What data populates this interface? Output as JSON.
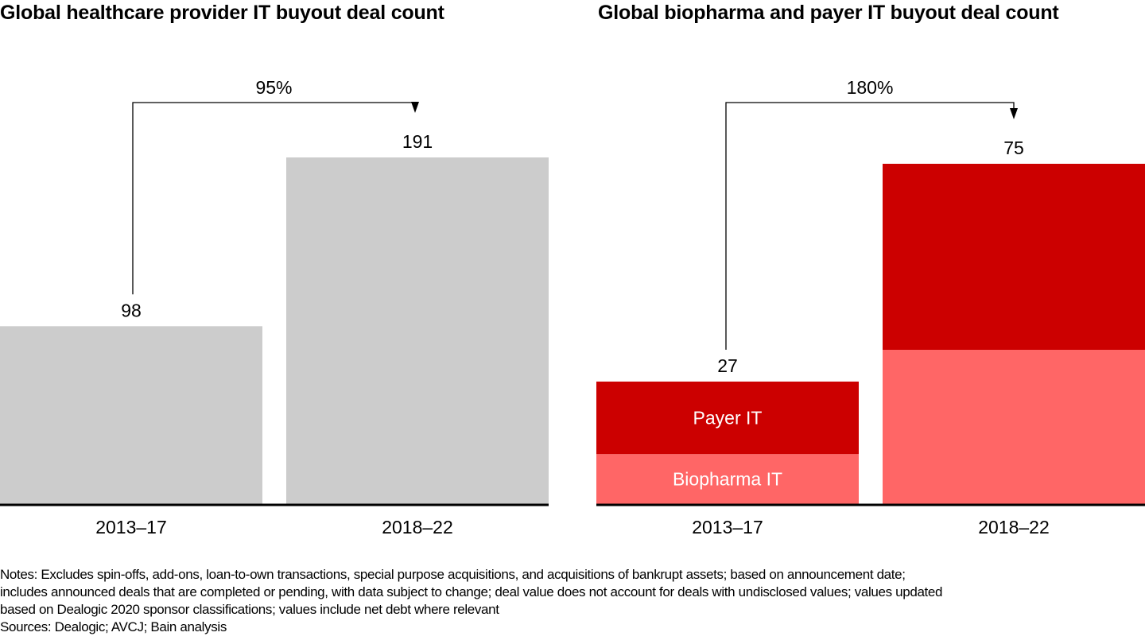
{
  "chart_data": [
    {
      "type": "bar",
      "title": "Global healthcare provider IT buyout deal count",
      "categories": [
        "2013–17",
        "2018–22"
      ],
      "values": [
        98,
        191
      ],
      "value_labels": [
        "98",
        "191"
      ],
      "growth_annotation": "95%",
      "xlabel": "",
      "ylabel": "",
      "ylim": [
        0,
        191
      ],
      "grid": false,
      "colors": {
        "bar": "#cccccc",
        "axis": "#000000"
      }
    },
    {
      "type": "bar",
      "stacked": true,
      "title": "Global biopharma and payer IT buyout deal count",
      "categories": [
        "2013–17",
        "2018–22"
      ],
      "series": [
        {
          "name": "Biopharma IT",
          "values": [
            11,
            34
          ],
          "color": "#ff6666"
        },
        {
          "name": "Payer IT",
          "values": [
            16,
            41
          ],
          "color": "#cc0000"
        }
      ],
      "totals": [
        27,
        75
      ],
      "value_labels": [
        "27",
        "75"
      ],
      "growth_annotation": "180%",
      "xlabel": "",
      "ylabel": "",
      "ylim": [
        0,
        75
      ],
      "grid": false,
      "legend": "inline-in-first-bar"
    }
  ],
  "notes": {
    "lines": [
      "Notes: Excludes spin-offs, add-ons, loan-to-own transactions, special purpose acquisitions, and acquisitions of bankrupt assets; based on announcement date;",
      "includes announced deals that are completed or pending, with data subject to change; deal value does not account for deals with undisclosed values; values updated",
      "based on Dealogic 2020 sponsor classifications; values include net debt where relevant"
    ],
    "sources": "Sources: Dealogic; AVCJ; Bain analysis"
  }
}
